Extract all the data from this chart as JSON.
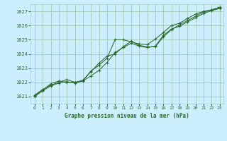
{
  "title": "Graphe pression niveau de la mer (hPa)",
  "background_color": "#cceeff",
  "grid_color": "#aaccbb",
  "line_color": "#2d6a2d",
  "marker_color": "#2d6a2d",
  "ylim": [
    1020.5,
    1027.5
  ],
  "xlim": [
    -0.5,
    23.5
  ],
  "yticks": [
    1021,
    1022,
    1023,
    1024,
    1025,
    1026,
    1027
  ],
  "xticks": [
    0,
    1,
    2,
    3,
    4,
    5,
    6,
    7,
    8,
    9,
    10,
    11,
    12,
    13,
    14,
    15,
    16,
    17,
    18,
    19,
    20,
    21,
    22,
    23
  ],
  "series1_x": [
    0,
    1,
    2,
    3,
    4,
    5,
    6,
    7,
    8,
    9,
    10,
    11,
    12,
    13,
    14,
    15,
    16,
    17,
    18,
    19,
    20,
    21,
    22,
    23
  ],
  "series1_y": [
    1021.1,
    1021.5,
    1021.8,
    1022.0,
    1022.2,
    1022.0,
    1022.1,
    1022.8,
    1023.2,
    1023.7,
    1025.0,
    1025.0,
    1024.85,
    1024.7,
    1024.65,
    1025.05,
    1025.5,
    1026.0,
    1026.15,
    1026.5,
    1026.8,
    1027.0,
    1027.1,
    1027.25
  ],
  "series2_x": [
    0,
    1,
    2,
    3,
    4,
    5,
    6,
    7,
    8,
    9,
    10,
    11,
    12,
    13,
    14,
    15,
    16,
    17,
    18,
    19,
    20,
    21,
    22,
    23
  ],
  "series2_y": [
    1021.0,
    1021.4,
    1021.75,
    1021.95,
    1022.05,
    1021.95,
    1022.1,
    1022.45,
    1022.85,
    1023.4,
    1024.1,
    1024.45,
    1024.75,
    1024.55,
    1024.45,
    1024.55,
    1025.3,
    1025.75,
    1025.95,
    1026.25,
    1026.55,
    1026.85,
    1027.05,
    1027.2
  ],
  "series3_x": [
    0,
    1,
    2,
    3,
    4,
    5,
    6,
    7,
    8,
    9,
    10,
    11,
    12,
    13,
    14,
    15,
    16,
    17,
    18,
    19,
    20,
    21,
    22,
    23
  ],
  "series3_y": [
    1021.05,
    1021.45,
    1021.9,
    1022.1,
    1022.0,
    1022.0,
    1022.15,
    1022.75,
    1023.35,
    1023.85,
    1024.0,
    1024.5,
    1024.9,
    1024.6,
    1024.5,
    1024.5,
    1025.2,
    1025.7,
    1026.05,
    1026.35,
    1026.65,
    1026.95,
    1027.1,
    1027.3
  ]
}
